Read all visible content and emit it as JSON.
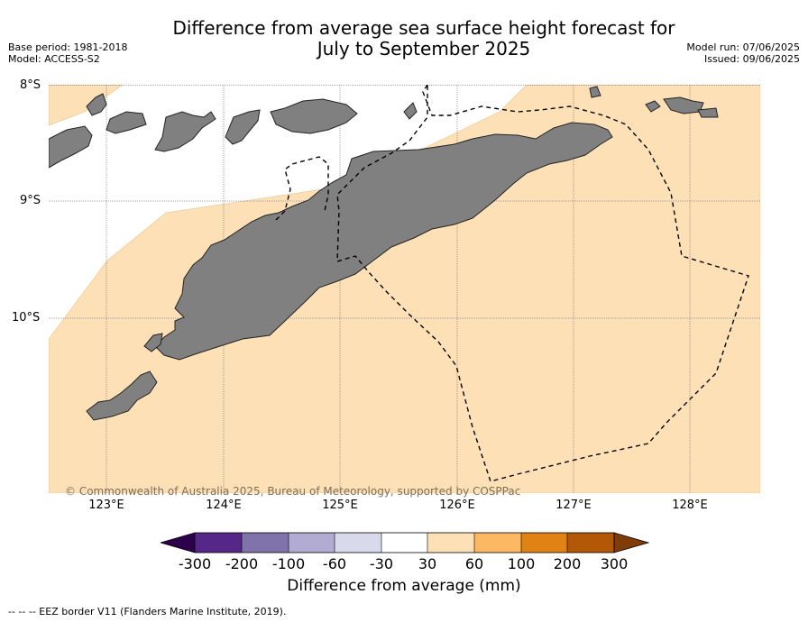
{
  "title_line1": "Difference from average sea surface height forecast for",
  "title_line2": "July to September 2025",
  "meta": {
    "base_period": "Base period: 1981-2018",
    "model": "Model: ACCESS-S2",
    "model_run": "Model run: 07/06/2025",
    "issued": "Issued: 09/06/2025"
  },
  "latitude_labels": [
    "8°S",
    "9°S",
    "10°S"
  ],
  "longitude_labels": [
    "123°E",
    "124°E",
    "125°E",
    "126°E",
    "127°E",
    "128°E"
  ],
  "copyright": "© Commonwealth of Australia 2025, Bureau of Meteorology, supported by COSPPac",
  "colorbar": {
    "ticks": [
      "-300",
      "-200",
      "-100",
      "-60",
      "-30",
      "30",
      "60",
      "100",
      "200",
      "300"
    ],
    "colors": [
      "#2d004b",
      "#542788",
      "#8073ac",
      "#b2abd2",
      "#d8daeb",
      "#ffffff",
      "#fee0b6",
      "#fdb863",
      "#e08214",
      "#b35806",
      "#7f3b08"
    ],
    "label": "Difference from average (mm)"
  },
  "footnote": "--  --  -- EEZ border V11 (Flanders Marine Institute, 2019).",
  "map_colors": {
    "ocean_anomaly": "#fee0b6",
    "neutral": "#ffffff",
    "land": "#808080"
  }
}
